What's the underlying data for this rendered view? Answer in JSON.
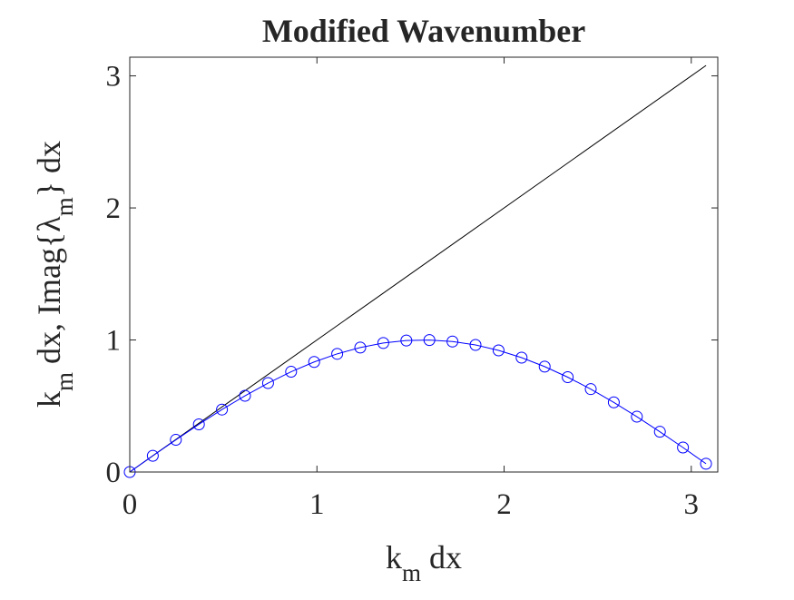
{
  "chart_data": {
    "type": "line",
    "title": "Modified Wavenumber",
    "xlabel": {
      "main": "k",
      "sub": "m",
      "rest": " dx"
    },
    "ylabel": {
      "part1": "k",
      "sub1": "m",
      "part2": " dx, Imag{",
      "symbol": "λ",
      "sub2": "m",
      "part3": "} dx"
    },
    "xlim": [
      0,
      3.1416
    ],
    "ylim": [
      0,
      3.1416
    ],
    "xticks": [
      0,
      1,
      2,
      3
    ],
    "xtick_labels": [
      "0",
      "1",
      "2",
      "3"
    ],
    "yticks": [
      0,
      1,
      2,
      3
    ],
    "ytick_labels": [
      "0",
      "1",
      "2",
      "3"
    ],
    "grid": false,
    "series": [
      {
        "style": "line",
        "color": "#000000",
        "x": [
          0,
          3.0788
        ],
        "y": [
          0,
          3.0788
        ]
      },
      {
        "style": "line-with-circle-markers",
        "color": "#0000ff",
        "x": [
          0,
          0.1231,
          0.2463,
          0.3694,
          0.4926,
          0.6157,
          0.7389,
          0.862,
          0.9852,
          1.1083,
          1.2315,
          1.3546,
          1.4778,
          1.6009,
          1.7241,
          1.8472,
          1.9704,
          2.0935,
          2.2167,
          2.3398,
          2.463,
          2.5861,
          2.7093,
          2.8324,
          2.9556,
          3.0788
        ],
        "y": [
          0,
          0.1228,
          0.2438,
          0.3611,
          0.4729,
          0.5774,
          0.6736,
          0.7593,
          0.8334,
          0.8948,
          0.9426,
          0.9771,
          0.9957,
          0.9995,
          0.9884,
          0.9624,
          0.9211,
          0.8663,
          0.7983,
          0.7183,
          0.6278,
          0.5274,
          0.4191,
          0.3048,
          0.1855,
          0.0628
        ]
      }
    ]
  }
}
